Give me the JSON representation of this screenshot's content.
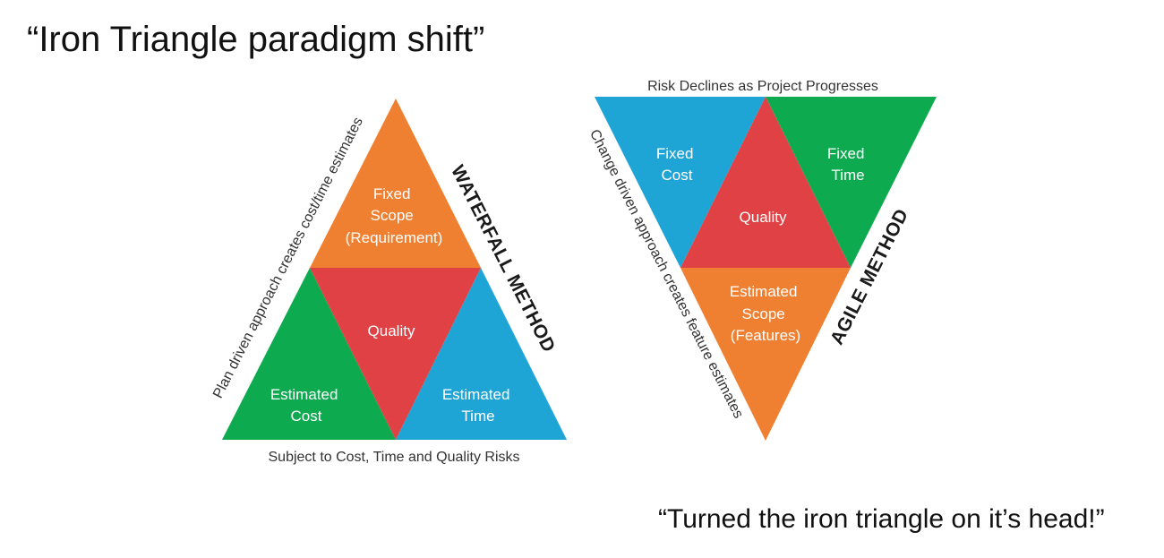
{
  "title": "“Iron Triangle paradigm shift”",
  "quote": "“Turned the iron triangle on it’s head!”",
  "colors": {
    "orange": "#f08031",
    "red": "#e04145",
    "green": "#0daa4f",
    "blue": "#1fa4d6"
  },
  "waterfall": {
    "top": {
      "line1": "Fixed",
      "line2": "Scope",
      "line3": "(Requirement)"
    },
    "center": "Quality",
    "left": {
      "line1": "Estimated",
      "line2": "Cost"
    },
    "right": {
      "line1": "Estimated",
      "line2": "Time"
    },
    "side_label": "Plan driven approach creates cost/time estimates",
    "method_label": "WATERFALL METHOD",
    "bottom_caption": "Subject to Cost, Time and Quality Risks"
  },
  "agile": {
    "top_caption": "Risk Declines as Project Progresses",
    "left": {
      "line1": "Fixed",
      "line2": "Cost"
    },
    "right": {
      "line1": "Fixed",
      "line2": "Time"
    },
    "center": "Quality",
    "bottom": {
      "line1": "Estimated",
      "line2": "Scope",
      "line3": "(Features)"
    },
    "side_label": "Change driven approach creates feature estimates",
    "method_label": "AGILE METHOD"
  }
}
